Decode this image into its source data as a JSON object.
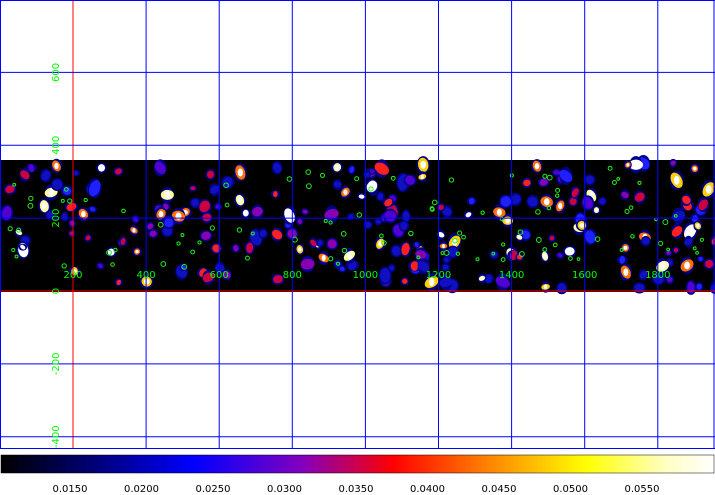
{
  "colors": {
    "background": "#ffffff",
    "image": "#000000",
    "grid": "#0000ff",
    "axis": "#ff0000",
    "tick_label": "#00ff00",
    "contour": "#22ee22"
  },
  "x_ticks": [
    {
      "value": 200,
      "label": "200"
    },
    {
      "value": 400,
      "label": "400"
    },
    {
      "value": 600,
      "label": "600"
    },
    {
      "value": 800,
      "label": "800"
    },
    {
      "value": 1000,
      "label": "1000"
    },
    {
      "value": 1200,
      "label": "1200"
    },
    {
      "value": 1400,
      "label": "1400"
    },
    {
      "value": 1600,
      "label": "1600"
    },
    {
      "value": 1800,
      "label": "1800"
    }
  ],
  "y_ticks": [
    {
      "value": 600,
      "label": "600"
    },
    {
      "value": 400,
      "label": "400"
    },
    {
      "value": 200,
      "label": "200"
    },
    {
      "value": 0,
      "label": "0"
    },
    {
      "value": -200,
      "label": "-200"
    },
    {
      "value": -400,
      "label": "-400"
    }
  ],
  "colorbar": {
    "labels": [
      "0.0150",
      "0.0200",
      "0.0250",
      "0.0300",
      "0.0350",
      "0.0400",
      "0.0450",
      "0.0500",
      "0.0550"
    ],
    "stops": [
      "#000000",
      "#000080",
      "#0000ff",
      "#8000c0",
      "#ff0000",
      "#ff8000",
      "#ffff00",
      "#ffffc0",
      "#ffffff"
    ]
  }
}
